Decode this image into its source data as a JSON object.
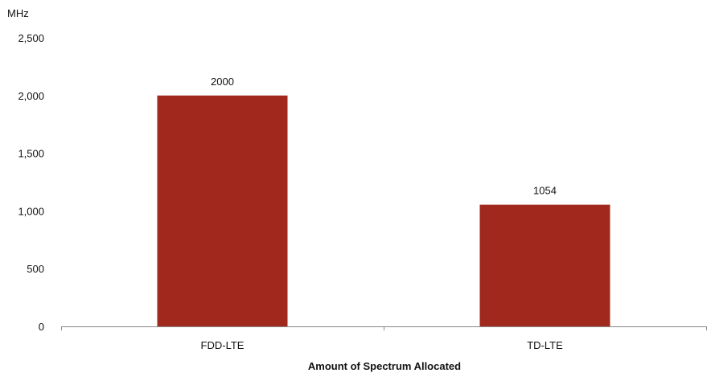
{
  "chart_data": {
    "type": "bar",
    "title": "",
    "ylabel": "MHz",
    "xlabel": "Amount of Spectrum Allocated",
    "categories": [
      "FDD-LTE",
      "TD-LTE"
    ],
    "values": [
      2000,
      1054
    ],
    "data_labels": [
      "2000",
      "1054"
    ],
    "ylim": [
      0,
      2500
    ],
    "yticks": [
      0,
      500,
      1000,
      1500,
      2000,
      2500
    ],
    "ytick_labels": [
      "0",
      "500",
      "1,000",
      "1,500",
      "2,000",
      "2,500"
    ],
    "grid": false,
    "legend": "none",
    "bar_color": "#a0281d"
  }
}
